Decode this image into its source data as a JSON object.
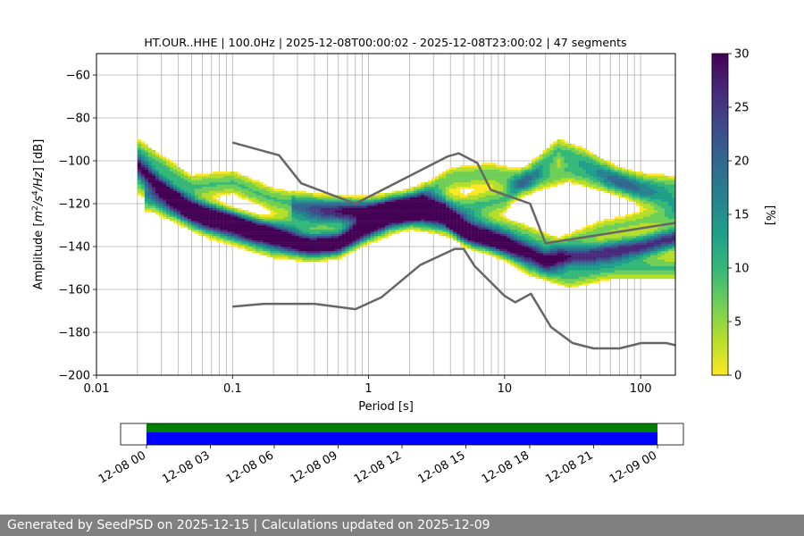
{
  "chart_data": {
    "type": "heatmap",
    "title": "HT.OUR..HHE | 100.0Hz | 2025-12-08T00:00:02 - 2025-12-08T23:00:02 | 47 segments",
    "xlabel": "Period [s]",
    "ylabel_parts": {
      "pre": "Amplitude [",
      "m": "m",
      "s2": "2",
      "slash_s": "/s",
      "s4": "4",
      "hz": "/Hz",
      "post": "] [dB]"
    },
    "x_scale": "log",
    "xlim": [
      0.01,
      180
    ],
    "ylim": [
      -200,
      -50
    ],
    "x_ticks": [
      {
        "value": 0.01,
        "label": "0.01"
      },
      {
        "value": 0.1,
        "label": "0.1"
      },
      {
        "value": 1,
        "label": "1"
      },
      {
        "value": 10,
        "label": "10"
      },
      {
        "value": 100,
        "label": "100"
      }
    ],
    "y_ticks": [
      {
        "value": -60,
        "label": "−60"
      },
      {
        "value": -80,
        "label": "−80"
      },
      {
        "value": -100,
        "label": "−100"
      },
      {
        "value": -120,
        "label": "−120"
      },
      {
        "value": -140,
        "label": "−140"
      },
      {
        "value": -160,
        "label": "−160"
      },
      {
        "value": -180,
        "label": "−180"
      },
      {
        "value": -200,
        "label": "−200"
      }
    ],
    "grid": true,
    "colorbar": {
      "label": "[%]",
      "range": [
        0,
        30
      ],
      "ticks": [
        {
          "value": 0,
          "label": "0"
        },
        {
          "value": 5,
          "label": "5"
        },
        {
          "value": 10,
          "label": "10"
        },
        {
          "value": 15,
          "label": "15"
        },
        {
          "value": 20,
          "label": "20"
        },
        {
          "value": 25,
          "label": "25"
        },
        {
          "value": 30,
          "label": "30"
        }
      ],
      "colormap": "viridis_r",
      "stops": [
        "#fde725",
        "#b5de2b",
        "#6ece58",
        "#35b779",
        "#1f9e89",
        "#26828e",
        "#31688e",
        "#3e4989",
        "#482878",
        "#440154"
      ]
    },
    "noise_model_color": "#666666",
    "high_noise_model": [
      {
        "x": 0.1,
        "y": -91.5
      },
      {
        "x": 0.22,
        "y": -97.4
      },
      {
        "x": 0.32,
        "y": -110.5
      },
      {
        "x": 0.8,
        "y": -120
      },
      {
        "x": 3.8,
        "y": -98
      },
      {
        "x": 4.6,
        "y": -96.5
      },
      {
        "x": 6.3,
        "y": -101
      },
      {
        "x": 7.9,
        "y": -113.5
      },
      {
        "x": 15.4,
        "y": -120
      },
      {
        "x": 20,
        "y": -138.5
      },
      {
        "x": 354.8,
        "y": -126
      }
    ],
    "low_noise_model": [
      {
        "x": 0.1,
        "y": -168
      },
      {
        "x": 0.17,
        "y": -166.7
      },
      {
        "x": 0.4,
        "y": -166.7
      },
      {
        "x": 0.8,
        "y": -169.2
      },
      {
        "x": 1.24,
        "y": -163.7
      },
      {
        "x": 2.4,
        "y": -148.6
      },
      {
        "x": 4.3,
        "y": -141.1
      },
      {
        "x": 5.0,
        "y": -141.1
      },
      {
        "x": 6.0,
        "y": -149
      },
      {
        "x": 10.0,
        "y": -163
      },
      {
        "x": 12.0,
        "y": -166
      },
      {
        "x": 15.6,
        "y": -162
      },
      {
        "x": 21.9,
        "y": -177.5
      },
      {
        "x": 31.6,
        "y": -185
      },
      {
        "x": 45,
        "y": -187.5
      },
      {
        "x": 70,
        "y": -187.5
      },
      {
        "x": 101,
        "y": -185
      },
      {
        "x": 154,
        "y": -185
      },
      {
        "x": 180,
        "y": -186
      }
    ],
    "psd_bands": [
      {
        "name": "main",
        "w": 1.0,
        "spread": 3.5,
        "pts": [
          {
            "x": 0.02,
            "y": -102
          },
          {
            "x": 0.03,
            "y": -112
          },
          {
            "x": 0.05,
            "y": -122
          },
          {
            "x": 0.1,
            "y": -128
          },
          {
            "x": 0.2,
            "y": -135
          },
          {
            "x": 0.35,
            "y": -139
          },
          {
            "x": 0.6,
            "y": -139
          },
          {
            "x": 1.0,
            "y": -130
          },
          {
            "x": 1.5,
            "y": -124
          },
          {
            "x": 2.5,
            "y": -122
          },
          {
            "x": 3.5,
            "y": -124
          },
          {
            "x": 5,
            "y": -133
          },
          {
            "x": 6,
            "y": -135
          },
          {
            "x": 10,
            "y": -138
          },
          {
            "x": 16,
            "y": -143
          },
          {
            "x": 20,
            "y": -146
          },
          {
            "x": 40,
            "y": -144
          },
          {
            "x": 100,
            "y": -140
          },
          {
            "x": 180,
            "y": -136
          }
        ]
      },
      {
        "name": "upper-a",
        "w": 0.45,
        "spread": 4,
        "pts": [
          {
            "x": 0.02,
            "y": -95
          },
          {
            "x": 0.05,
            "y": -112
          },
          {
            "x": 0.1,
            "y": -110
          },
          {
            "x": 0.2,
            "y": -118
          },
          {
            "x": 0.5,
            "y": -122
          },
          {
            "x": 1,
            "y": -124
          },
          {
            "x": 2.5,
            "y": -119
          },
          {
            "x": 5,
            "y": -122
          },
          {
            "x": 10,
            "y": -118
          },
          {
            "x": 20,
            "y": -100
          },
          {
            "x": 25,
            "y": -95
          },
          {
            "x": 40,
            "y": -100
          },
          {
            "x": 100,
            "y": -115
          },
          {
            "x": 180,
            "y": -120
          }
        ]
      },
      {
        "name": "upper-b",
        "w": 0.4,
        "spread": 4,
        "pts": [
          {
            "x": 0.02,
            "y": -110
          },
          {
            "x": 0.06,
            "y": -128
          },
          {
            "x": 0.15,
            "y": -133
          },
          {
            "x": 0.4,
            "y": -128
          },
          {
            "x": 1,
            "y": -124
          },
          {
            "x": 2,
            "y": -120
          },
          {
            "x": 4,
            "y": -108
          },
          {
            "x": 8,
            "y": -106
          },
          {
            "x": 15,
            "y": -110
          },
          {
            "x": 30,
            "y": -105
          },
          {
            "x": 60,
            "y": -110
          },
          {
            "x": 180,
            "y": -112
          }
        ]
      },
      {
        "name": "lower-a",
        "w": 0.45,
        "spread": 4,
        "pts": [
          {
            "x": 0.025,
            "y": -118
          },
          {
            "x": 0.07,
            "y": -130
          },
          {
            "x": 0.2,
            "y": -140
          },
          {
            "x": 0.4,
            "y": -141
          },
          {
            "x": 1,
            "y": -133
          },
          {
            "x": 2,
            "y": -126
          },
          {
            "x": 4,
            "y": -130
          },
          {
            "x": 8,
            "y": -137
          },
          {
            "x": 15,
            "y": -148
          },
          {
            "x": 30,
            "y": -154
          },
          {
            "x": 60,
            "y": -150
          },
          {
            "x": 180,
            "y": -150
          }
        ]
      },
      {
        "name": "lower-b",
        "w": 0.35,
        "spread": 3.5,
        "pts": [
          {
            "x": 0.3,
            "y": -122
          },
          {
            "x": 1,
            "y": -123
          },
          {
            "x": 3,
            "y": -125
          },
          {
            "x": 6,
            "y": -128
          },
          {
            "x": 12,
            "y": -132
          },
          {
            "x": 25,
            "y": -140
          },
          {
            "x": 50,
            "y": -132
          },
          {
            "x": 100,
            "y": -128
          },
          {
            "x": 180,
            "y": -126
          }
        ]
      }
    ]
  },
  "availability": {
    "ticks": [
      "12-08 00",
      "12-08 03",
      "12-08 06",
      "12-08 09",
      "12-08 12",
      "12-08 15",
      "12-08 18",
      "12-08 21",
      "12-09 00"
    ],
    "bar_colors": {
      "top": "#008000",
      "bottom": "#0000ff"
    }
  },
  "footer": {
    "text": "Generated by SeedPSD on 2025-12-15 | Calculations updated on 2025-12-09"
  }
}
